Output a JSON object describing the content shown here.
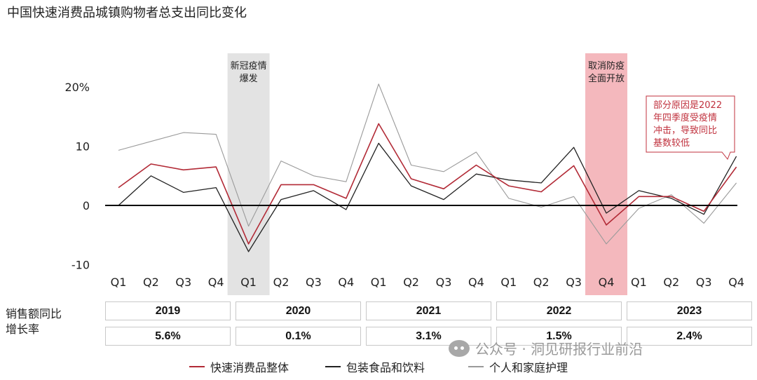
{
  "title": "中国快速消费品城镇购物者总支出同比变化",
  "chart_data": {
    "type": "line",
    "categories": [
      "Q1",
      "Q2",
      "Q3",
      "Q4",
      "Q1",
      "Q2",
      "Q3",
      "Q4",
      "Q1",
      "Q2",
      "Q3",
      "Q4",
      "Q1",
      "Q2",
      "Q3",
      "Q4",
      "Q1",
      "Q2",
      "Q3",
      "Q4"
    ],
    "ylim": [
      -10,
      20
    ],
    "yticks": [
      "-10",
      "0",
      "10",
      "20%"
    ],
    "ytick_values": [
      -10,
      0,
      10,
      20
    ],
    "series": [
      {
        "name": "快速消费品整体",
        "color": "#b22a36",
        "width": 1.6,
        "values": [
          3,
          7,
          6,
          6.5,
          -6.5,
          3.5,
          3.5,
          1.2,
          13.8,
          4.5,
          2.8,
          6.8,
          3.3,
          2.3,
          6.7,
          -3.3,
          1.5,
          1.5,
          -1.0,
          6.5
        ]
      },
      {
        "name": "包装食品和饮料",
        "color": "#222222",
        "width": 1.3,
        "values": [
          0,
          5,
          2.2,
          3,
          -7.8,
          1,
          2.5,
          -0.7,
          10.5,
          3.3,
          1,
          5.3,
          4.3,
          3.8,
          9.8,
          -1.3,
          2.5,
          1.2,
          -1.5,
          8.3
        ]
      },
      {
        "name": "个人和家庭护理",
        "color": "#9a9a9a",
        "width": 1.1,
        "values": [
          9.3,
          10.8,
          12.3,
          12,
          -3.5,
          7.5,
          5,
          4,
          20.5,
          6.8,
          5.7,
          9,
          1.2,
          -0.3,
          1.5,
          -6.5,
          -0.5,
          1.8,
          -3,
          3.8
        ]
      }
    ],
    "shaded_regions": [
      {
        "label": "新冠疫情\n爆发",
        "index": 4,
        "color": "#e3e3e3"
      },
      {
        "label": "取消防疫\n全面开放",
        "index": 15,
        "color": "#f4b8bd"
      }
    ],
    "annotation": {
      "text": "部分原因是2022\n年四季度受疫情\n冲击，导致同比\n基数较低",
      "color": "#c0323e"
    },
    "year_groups": [
      "2019",
      "2020",
      "2021",
      "2022",
      "2023"
    ],
    "growth": [
      "5.6%",
      "0.1%",
      "3.1%",
      "1.5%",
      "2.4%"
    ]
  },
  "table": {
    "row_label_line1": "销售额同比",
    "row_label_line2": "增长率"
  },
  "watermark": "公众号 · 洞见研报行业前沿"
}
